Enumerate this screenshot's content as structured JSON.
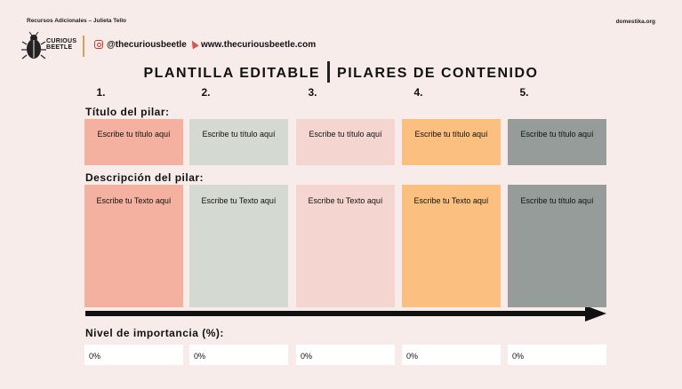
{
  "header": {
    "top_left": "Recursos Adicionales – Julieta Tello",
    "top_right": "domestika.org",
    "logo_text_line1": "CURIOUS",
    "logo_text_line2": "BEETLE",
    "instagram": "@thecuriousbeetle",
    "website": "www.thecuriousbeetle.com"
  },
  "title": {
    "left": "PLANTILLA EDITABLE",
    "right": "PILARES DE CONTENIDO"
  },
  "columns": [
    {
      "number": "1.",
      "title": "Escribe tu título aquí",
      "description": "Escribe tu Texto aquí",
      "percent": "0%",
      "color": "#f4b1a0"
    },
    {
      "number": "2.",
      "title": "Escribe tu título aquí",
      "description": "Escribe tu Texto aquí",
      "percent": "0%",
      "color": "#d4d9d1"
    },
    {
      "number": "3.",
      "title": "Escribe tu título aquí",
      "description": "Escribe tu Texto aquí",
      "percent": "0%",
      "color": "#f4d5cf"
    },
    {
      "number": "4.",
      "title": "Escribe tu título aquí",
      "description": "Escribe tu Texto aquí",
      "percent": "0%",
      "color": "#fbbf7f"
    },
    {
      "number": "5.",
      "title": "Escribe tu título aquí",
      "description": "Escribe tu título aquí",
      "percent": "0%",
      "color": "#959c99"
    }
  ],
  "labels": {
    "pillar_title": "Título del pilar:",
    "pillar_description": "Descripción del pilar:",
    "importance": "Nivel de importancia (%):"
  },
  "icons": [
    "beetle-logo-icon",
    "instagram-icon",
    "cursor-icon",
    "arrow-right-icon"
  ]
}
